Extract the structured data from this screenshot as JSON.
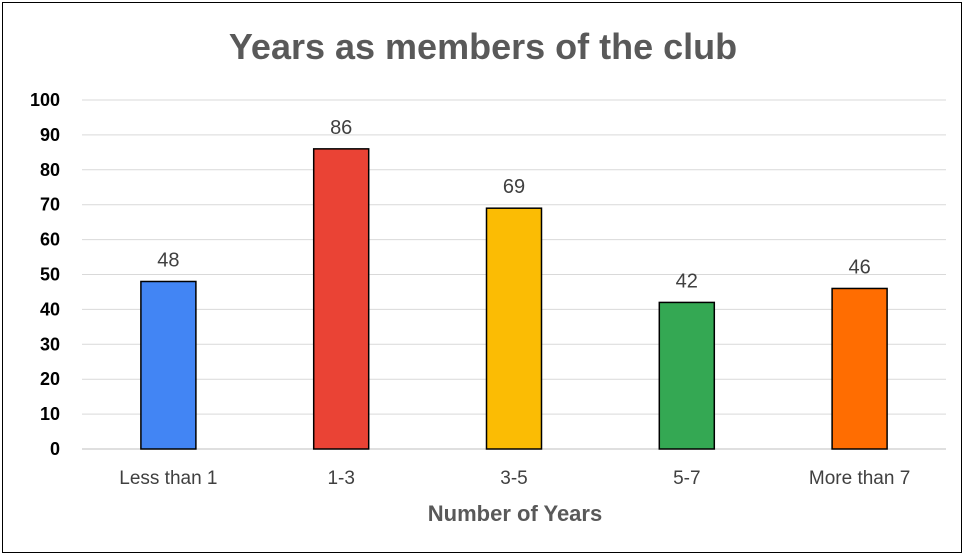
{
  "chart_data": {
    "type": "bar",
    "title": "Years as members of the club",
    "xlabel": "Number of Years",
    "ylabel": "",
    "categories": [
      "Less than 1",
      "1-3",
      "3-5",
      "5-7",
      "More than 7"
    ],
    "values": [
      48,
      86,
      69,
      42,
      46
    ],
    "colors": [
      "#4285F4",
      "#EA4335",
      "#FBBC04",
      "#34A853",
      "#FF6D01"
    ],
    "ylim": [
      0,
      100
    ],
    "yticks": [
      0,
      10,
      20,
      30,
      40,
      50,
      60,
      70,
      80,
      90,
      100
    ],
    "grid": true,
    "legend": "none",
    "data_labels": true
  }
}
